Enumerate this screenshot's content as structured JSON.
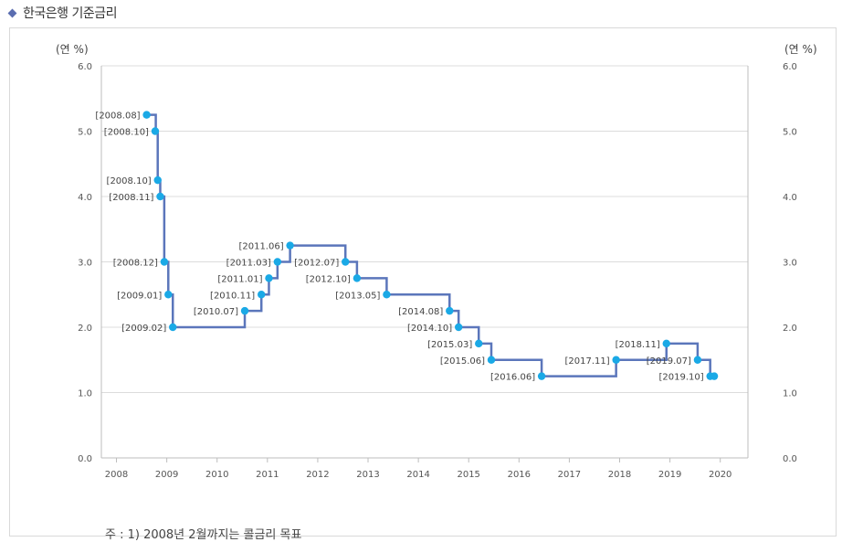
{
  "header": {
    "title": "한국은행 기준금리",
    "marker_color": "#5a6db0"
  },
  "footnote": "주 : 1) 2008년 2월까지는 콜금리 목표",
  "chart_data": {
    "type": "line",
    "step": true,
    "line_color": "#5b76bb",
    "point_color": "#1aa9e6",
    "ylabel_left": "(연 %)",
    "ylabel_right": "(연 %)",
    "ylim": [
      0,
      6
    ],
    "yticks": [
      "0.0",
      "1.0",
      "2.0",
      "3.0",
      "4.0",
      "5.0",
      "6.0"
    ],
    "xlim": [
      2007.7,
      2020.55
    ],
    "xticks": [
      "2008",
      "2009",
      "2010",
      "2011",
      "2012",
      "2013",
      "2014",
      "2015",
      "2016",
      "2017",
      "2018",
      "2019",
      "2020"
    ],
    "points": [
      {
        "label": "[2008.08]",
        "x": 2008.6,
        "y": 5.25,
        "label_side": "left"
      },
      {
        "label": "[2008.10]",
        "x": 2008.77,
        "y": 5.0,
        "label_side": "left"
      },
      {
        "label": "[2008.10]",
        "x": 2008.82,
        "y": 4.25,
        "label_side": "left"
      },
      {
        "label": "[2008.11]",
        "x": 2008.87,
        "y": 4.0,
        "label_side": "left"
      },
      {
        "label": "[2008.12]",
        "x": 2008.95,
        "y": 3.0,
        "label_side": "left"
      },
      {
        "label": "[2009.01]",
        "x": 2009.03,
        "y": 2.5,
        "label_side": "left"
      },
      {
        "label": "[2009.02]",
        "x": 2009.12,
        "y": 2.0,
        "label_side": "left"
      },
      {
        "label": "[2010.07]",
        "x": 2010.55,
        "y": 2.25,
        "label_side": "left"
      },
      {
        "label": "[2010.11]",
        "x": 2010.88,
        "y": 2.5,
        "label_side": "left"
      },
      {
        "label": "[2011.01]",
        "x": 2011.03,
        "y": 2.75,
        "label_side": "left"
      },
      {
        "label": "[2011.03]",
        "x": 2011.2,
        "y": 3.0,
        "label_side": "left"
      },
      {
        "label": "[2011.06]",
        "x": 2011.45,
        "y": 3.25,
        "label_side": "left"
      },
      {
        "label": "[2012.07]",
        "x": 2012.55,
        "y": 3.0,
        "label_side": "left"
      },
      {
        "label": "[2012.10]",
        "x": 2012.78,
        "y": 2.75,
        "label_side": "left"
      },
      {
        "label": "[2013.05]",
        "x": 2013.37,
        "y": 2.5,
        "label_side": "left"
      },
      {
        "label": "[2014.08]",
        "x": 2014.62,
        "y": 2.25,
        "label_side": "left"
      },
      {
        "label": "[2014.10]",
        "x": 2014.8,
        "y": 2.0,
        "label_side": "left"
      },
      {
        "label": "[2015.03]",
        "x": 2015.2,
        "y": 1.75,
        "label_side": "left"
      },
      {
        "label": "[2015.06]",
        "x": 2015.45,
        "y": 1.5,
        "label_side": "left"
      },
      {
        "label": "[2016.06]",
        "x": 2016.45,
        "y": 1.25,
        "label_side": "left"
      },
      {
        "label": "[2017.11]",
        "x": 2017.93,
        "y": 1.5,
        "label_side": "left"
      },
      {
        "label": "[2018.11]",
        "x": 2018.93,
        "y": 1.75,
        "label_side": "left"
      },
      {
        "label": "[2019.07]",
        "x": 2019.55,
        "y": 1.5,
        "label_side": "left"
      },
      {
        "label": "[2019.10]",
        "x": 2019.8,
        "y": 1.25,
        "label_side": "left"
      },
      {
        "label": "",
        "x": 2019.88,
        "y": 1.25,
        "label_side": "left"
      }
    ]
  }
}
